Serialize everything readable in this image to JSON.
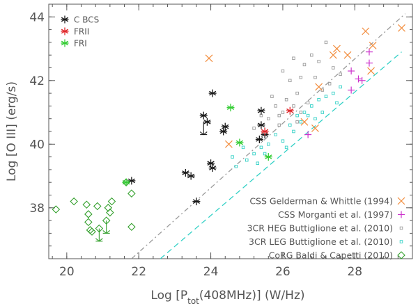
{
  "chart_data": {
    "type": "scatter",
    "title": "",
    "xlabel": "Log [P_tot(408MHz)] (W/Hz)",
    "ylabel": "Log [O III] (erg/s)",
    "xlim": [
      19.5,
      29.6
    ],
    "ylim": [
      36.4,
      44.4
    ],
    "xticks": [
      20,
      22,
      24,
      26,
      28
    ],
    "yticks": [
      38,
      40,
      42,
      44
    ],
    "grid": false,
    "lines": [
      {
        "name": "dash-dot gray",
        "style": "dashdot",
        "color": "#9a9a9a",
        "x": [
          21.8,
          29.4
        ],
        "y": [
          36.4,
          44.1
        ]
      },
      {
        "name": "dashed cyan",
        "style": "dashed",
        "color": "#33d1c6",
        "x": [
          22.6,
          29.3
        ],
        "y": [
          36.4,
          42.9
        ]
      }
    ],
    "legend_top_left": [
      {
        "label": "C BCS",
        "color": "#1a1a1a",
        "marker": "asterisk"
      },
      {
        "label": "FRII",
        "color": "#e0262a",
        "marker": "asterisk"
      },
      {
        "label": "FRI",
        "color": "#33cc33",
        "marker": "asterisk"
      }
    ],
    "legend_bottom_right": [
      {
        "label": "CSS Gelderman & Whittle (1994)",
        "color": "#f28c3c",
        "marker": "x"
      },
      {
        "label": "CSS Morganti et al. (1997)",
        "color": "#cc33cc",
        "marker": "plus"
      },
      {
        "label": "3CR HEG Buttiglione et al. (2010)",
        "color": "#9a9a9a",
        "marker": "square-small"
      },
      {
        "label": "3CR LEG Buttiglione et al. (2010)",
        "color": "#33d1c6",
        "marker": "square-small"
      },
      {
        "label": "CoRG Baldi & Capetti (2010)",
        "color": "#33a02c",
        "marker": "diamond"
      }
    ],
    "series": [
      {
        "name": "C BCS",
        "marker": "asterisk",
        "color": "#1a1a1a",
        "points": [
          [
            21.8,
            38.85
          ],
          [
            23.3,
            39.1
          ],
          [
            23.45,
            39.0
          ],
          [
            23.6,
            38.2
          ],
          [
            24.05,
            41.6
          ],
          [
            24.0,
            39.4
          ],
          [
            24.05,
            39.25
          ],
          [
            23.8,
            40.9
          ],
          [
            23.9,
            40.7
          ],
          [
            24.4,
            40.55
          ],
          [
            24.35,
            40.4
          ],
          [
            25.4,
            41.05
          ],
          [
            25.4,
            40.6
          ],
          [
            25.35,
            40.15
          ],
          [
            25.5,
            40.3
          ]
        ]
      },
      {
        "name": "FRII",
        "marker": "asterisk",
        "color": "#e0262a",
        "points": [
          [
            25.5,
            40.4
          ],
          [
            26.2,
            41.05
          ]
        ]
      },
      {
        "name": "FRI",
        "marker": "asterisk",
        "color": "#33cc33",
        "points": [
          [
            24.55,
            41.15
          ],
          [
            24.8,
            40.05
          ],
          [
            25.6,
            39.6
          ],
          [
            21.65,
            38.8
          ]
        ]
      },
      {
        "name": "CSS Gelderman & Whittle (1994)",
        "marker": "x",
        "color": "#f28c3c",
        "points": [
          [
            23.95,
            42.7
          ],
          [
            24.5,
            40.0
          ],
          [
            26.9,
            40.5
          ],
          [
            27.0,
            41.8
          ],
          [
            27.4,
            42.8
          ],
          [
            27.5,
            43.0
          ],
          [
            27.8,
            42.8
          ],
          [
            28.3,
            43.55
          ],
          [
            28.5,
            43.1
          ],
          [
            28.45,
            42.3
          ],
          [
            29.3,
            43.65
          ],
          [
            26.6,
            40.7
          ]
        ]
      },
      {
        "name": "CSS Morganti et al. (1997)",
        "marker": "plus",
        "color": "#cc33cc",
        "points": [
          [
            26.7,
            40.3
          ],
          [
            27.9,
            42.3
          ],
          [
            28.4,
            42.9
          ],
          [
            28.4,
            42.55
          ],
          [
            28.2,
            42.0
          ],
          [
            27.9,
            41.7
          ],
          [
            28.1,
            42.05
          ]
        ]
      },
      {
        "name": "3CR HEG Buttiglione et al. (2010)",
        "marker": "square-small",
        "color": "#9a9a9a",
        "points": [
          [
            26.0,
            42.3
          ],
          [
            26.2,
            42.0
          ],
          [
            26.4,
            41.6
          ],
          [
            26.1,
            41.4
          ],
          [
            25.8,
            41.2
          ],
          [
            26.5,
            41.0
          ],
          [
            26.8,
            42.8
          ],
          [
            27.0,
            42.6
          ],
          [
            26.6,
            42.5
          ],
          [
            27.2,
            43.2
          ],
          [
            27.4,
            42.4
          ],
          [
            25.9,
            40.9
          ],
          [
            26.3,
            41.2
          ],
          [
            25.6,
            40.8
          ],
          [
            25.9,
            40.6
          ],
          [
            26.7,
            41.3
          ],
          [
            27.1,
            41.7
          ],
          [
            25.2,
            40.5
          ],
          [
            25.4,
            40.9
          ],
          [
            26.9,
            42.1
          ],
          [
            27.6,
            42.2
          ],
          [
            26.0,
            41.0
          ],
          [
            26.5,
            42.1
          ],
          [
            25.7,
            41.5
          ],
          [
            27.3,
            41.9
          ],
          [
            26.3,
            42.7
          ],
          [
            26.4,
            40.7
          ]
        ]
      },
      {
        "name": "3CR LEG Buttiglione et al. (2010)",
        "marker": "square-small",
        "color": "#33d1c6",
        "points": [
          [
            25.0,
            39.5
          ],
          [
            25.2,
            39.7
          ],
          [
            25.4,
            39.9
          ],
          [
            25.6,
            40.0
          ],
          [
            25.8,
            40.3
          ],
          [
            26.0,
            40.1
          ],
          [
            26.2,
            40.6
          ],
          [
            26.4,
            40.9
          ],
          [
            26.6,
            41.0
          ],
          [
            26.8,
            41.2
          ],
          [
            27.0,
            41.4
          ],
          [
            27.2,
            41.5
          ],
          [
            27.4,
            41.6
          ],
          [
            27.6,
            41.8
          ],
          [
            26.3,
            40.4
          ],
          [
            26.5,
            40.7
          ],
          [
            26.9,
            40.8
          ],
          [
            25.3,
            39.4
          ],
          [
            24.6,
            39.6
          ],
          [
            24.9,
            39.9
          ],
          [
            27.5,
            41.3
          ],
          [
            27.1,
            41.0
          ],
          [
            26.1,
            39.9
          ],
          [
            25.5,
            39.7
          ],
          [
            24.7,
            39.3
          ],
          [
            26.7,
            40.9
          ]
        ]
      },
      {
        "name": "CoRG Baldi & Capetti (2010)",
        "marker": "diamond",
        "color": "#33a02c",
        "points": [
          [
            19.7,
            37.95
          ],
          [
            20.2,
            38.2
          ],
          [
            20.55,
            38.1
          ],
          [
            20.6,
            37.8
          ],
          [
            20.65,
            37.3
          ],
          [
            20.7,
            37.25
          ],
          [
            20.6,
            37.55
          ],
          [
            20.85,
            38.05
          ],
          [
            20.9,
            37.35
          ],
          [
            21.1,
            37.6
          ],
          [
            21.2,
            37.85
          ],
          [
            21.15,
            38.0
          ],
          [
            21.25,
            38.2
          ],
          [
            21.65,
            38.8
          ],
          [
            21.8,
            38.45
          ],
          [
            21.8,
            37.4
          ]
        ]
      }
    ],
    "upper_limits": [
      {
        "color": "#1a1a1a",
        "x": 23.8,
        "y": 40.7,
        "y_end": 40.3
      },
      {
        "color": "#33a02c",
        "x": 20.9,
        "y": 37.35,
        "y_end": 36.95
      },
      {
        "color": "#33a02c",
        "x": 21.1,
        "y": 37.6,
        "y_end": 37.2
      }
    ]
  }
}
